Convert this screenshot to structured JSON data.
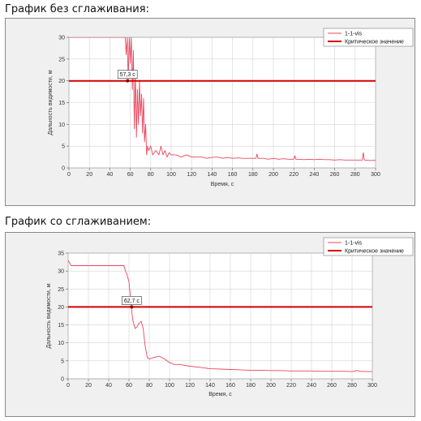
{
  "section_titles": [
    "График без сглаживания:",
    "График со сглаживанием:"
  ],
  "chart_data": [
    {
      "type": "line",
      "xlabel": "Время, с",
      "ylabel": "Дальность видимости, м",
      "xlim": [
        0,
        300
      ],
      "ylim": [
        0,
        30
      ],
      "xticks": [
        0,
        20,
        40,
        60,
        80,
        100,
        120,
        140,
        160,
        180,
        200,
        220,
        240,
        260,
        280,
        300
      ],
      "yticks": [
        0,
        5,
        10,
        15,
        20,
        25,
        30
      ],
      "grid": true,
      "legend_position": "top-right",
      "critical_value": 20,
      "marker": {
        "x": 57.3,
        "y": 20,
        "label": "57,3 с"
      },
      "series": [
        {
          "name": "1-1-vis",
          "color": "#e8475f",
          "x": [
            0,
            10,
            20,
            30,
            40,
            50,
            55,
            56,
            57,
            58,
            59,
            60,
            61,
            62,
            63,
            64,
            65,
            66,
            67,
            68,
            69,
            70,
            71,
            72,
            73,
            74,
            75,
            76,
            77,
            78,
            80,
            82,
            85,
            88,
            90,
            92,
            94,
            96,
            98,
            100,
            105,
            110,
            115,
            120,
            125,
            130,
            135,
            140,
            145,
            150,
            155,
            160,
            165,
            170,
            175,
            180,
            183,
            184,
            185,
            190,
            195,
            200,
            205,
            210,
            215,
            220,
            221,
            222,
            225,
            230,
            235,
            240,
            245,
            250,
            255,
            260,
            265,
            270,
            275,
            280,
            285,
            287,
            288,
            289,
            290,
            295,
            300
          ],
          "y": [
            30,
            30,
            30,
            30,
            30,
            30,
            30,
            26,
            30,
            20,
            30,
            24,
            30,
            18,
            27,
            9,
            22,
            7,
            18,
            10,
            20,
            12,
            17,
            8,
            16,
            6,
            10,
            3,
            5,
            4,
            5,
            3,
            4,
            3,
            5,
            3,
            4,
            2.5,
            3.5,
            3,
            3,
            2.5,
            3,
            2.5,
            2.5,
            2.5,
            2.2,
            2.4,
            2.5,
            2.2,
            2.4,
            2.2,
            2.3,
            2.2,
            2.2,
            2.2,
            2.2,
            3.2,
            2.2,
            2.2,
            2,
            2.2,
            2,
            2.1,
            2,
            2,
            2.8,
            2,
            2,
            1.9,
            2,
            1.9,
            2,
            1.9,
            1.9,
            1.8,
            1.9,
            1.8,
            1.8,
            1.8,
            1.8,
            1.8,
            3.5,
            1.8,
            1.8,
            1.7,
            1.8
          ]
        },
        {
          "name": "Критическое значение",
          "color": "#d40000",
          "x": [
            0,
            300
          ],
          "y": [
            20,
            20
          ]
        }
      ]
    },
    {
      "type": "line",
      "xlabel": "Время, с",
      "ylabel": "Дальность видимости, м",
      "xlim": [
        0,
        300
      ],
      "ylim": [
        0,
        35
      ],
      "xticks": [
        0,
        20,
        40,
        60,
        80,
        100,
        120,
        140,
        160,
        180,
        200,
        220,
        240,
        260,
        280,
        300
      ],
      "yticks": [
        0,
        5,
        10,
        15,
        20,
        25,
        30,
        35
      ],
      "grid": true,
      "legend_position": "top-right",
      "critical_value": 20,
      "marker": {
        "x": 62.7,
        "y": 20,
        "label": "62,7 с"
      },
      "series": [
        {
          "name": "1-1-vis",
          "color": "#e8475f",
          "x": [
            0,
            1,
            3,
            10,
            20,
            30,
            40,
            50,
            54,
            55,
            56,
            58,
            60,
            61,
            62,
            63,
            64,
            65,
            66,
            68,
            70,
            72,
            74,
            76,
            78,
            80,
            85,
            90,
            95,
            100,
            105,
            110,
            120,
            130,
            140,
            150,
            160,
            170,
            180,
            190,
            200,
            210,
            220,
            230,
            240,
            250,
            260,
            270,
            280,
            285,
            290,
            295,
            300
          ],
          "y": [
            33,
            32.5,
            31.5,
            31.5,
            31.5,
            31.5,
            31.5,
            31.5,
            31.5,
            31.5,
            30.5,
            29,
            27,
            24,
            21,
            18,
            16,
            15,
            14,
            14.5,
            15.5,
            16,
            14,
            9,
            6,
            5.5,
            6,
            6.3,
            5.5,
            4.5,
            4,
            4,
            3.5,
            3.2,
            2.8,
            2.7,
            2.6,
            2.5,
            2.4,
            2.4,
            2.3,
            2.3,
            2.2,
            2.2,
            2.2,
            2.1,
            2.1,
            2.1,
            2,
            2.3,
            2,
            2,
            2
          ]
        },
        {
          "name": "Критическое значение",
          "color": "#d40000",
          "x": [
            0,
            300
          ],
          "y": [
            20,
            20
          ]
        }
      ]
    }
  ]
}
